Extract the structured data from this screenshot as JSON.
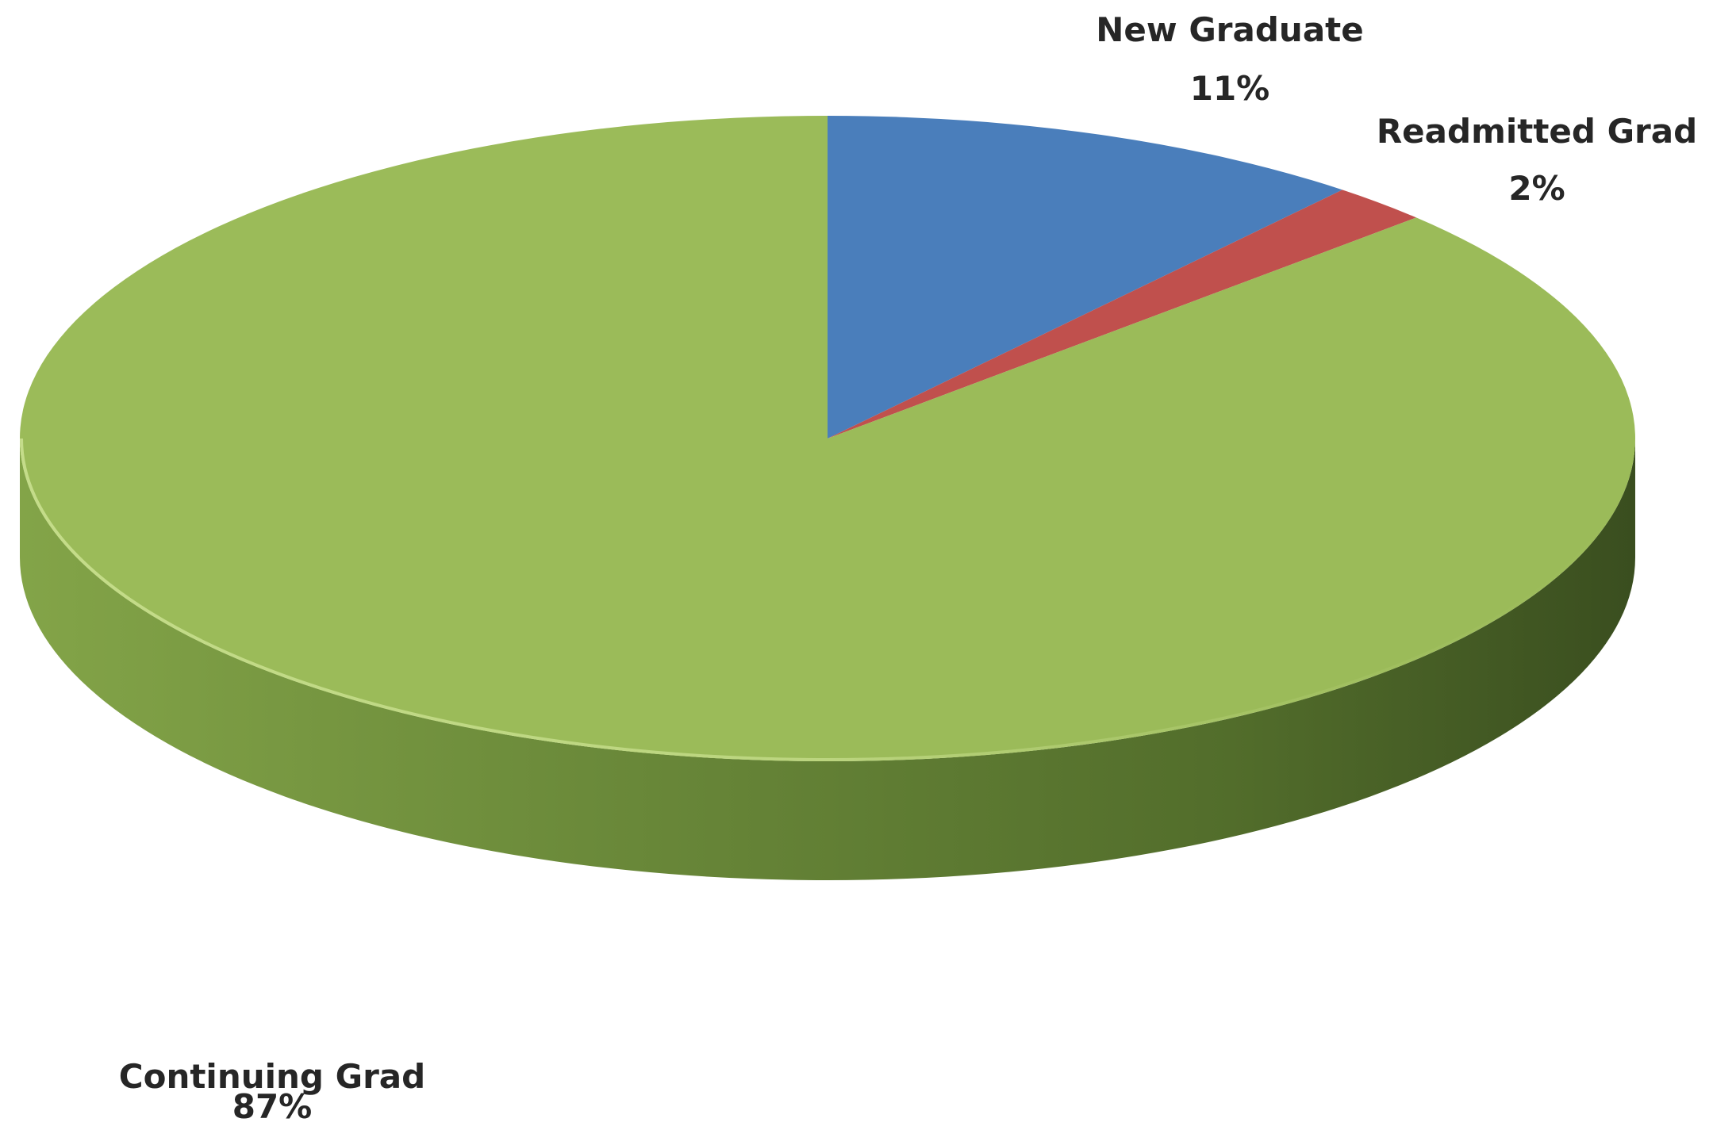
{
  "chart_data": {
    "type": "pie",
    "style": "3d",
    "title": "",
    "slices": [
      {
        "label": "New Graduate",
        "value": 11,
        "value_label": "11%",
        "color": "#4a7ebb"
      },
      {
        "label": "Readmitted Grad",
        "value": 2,
        "value_label": "2%",
        "color": "#c0504d"
      },
      {
        "label": "Continuing Grad",
        "value": 87,
        "value_label": "87%",
        "color": "#9bbb59"
      }
    ],
    "start_angle_deg": 0,
    "direction": "clockwise",
    "legend": "none",
    "data_labels": "outside-end"
  }
}
